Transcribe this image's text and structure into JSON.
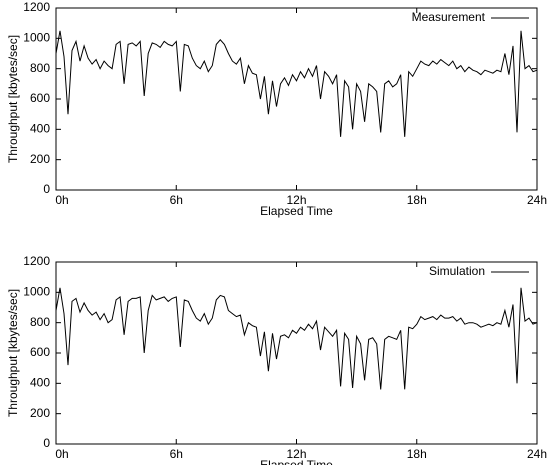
{
  "chart_data": [
    {
      "type": "line",
      "xlabel": "Elapsed Time",
      "ylabel": "Throughput [kbytes/sec]",
      "xlim": [
        0,
        24
      ],
      "xticks": [
        {
          "value": 0,
          "label": "0h"
        },
        {
          "value": 6,
          "label": "6h"
        },
        {
          "value": 12,
          "label": "12h"
        },
        {
          "value": 18,
          "label": "18h"
        },
        {
          "value": 24,
          "label": "24h"
        }
      ],
      "ylim": [
        0,
        1200
      ],
      "yticks": [
        0,
        200,
        400,
        600,
        800,
        1000,
        1200
      ],
      "legend": "upper right",
      "x": [
        0,
        0.2,
        0.4,
        0.6,
        0.8,
        1,
        1.2,
        1.4,
        1.6,
        1.8,
        2,
        2.2,
        2.4,
        2.6,
        2.8,
        3,
        3.2,
        3.4,
        3.6,
        3.8,
        4,
        4.2,
        4.4,
        4.6,
        4.8,
        5,
        5.2,
        5.4,
        5.6,
        5.8,
        6,
        6.2,
        6.4,
        6.6,
        6.8,
        7,
        7.2,
        7.4,
        7.6,
        7.8,
        8,
        8.2,
        8.4,
        8.6,
        8.8,
        9,
        9.2,
        9.4,
        9.6,
        9.8,
        10,
        10.2,
        10.4,
        10.6,
        10.8,
        11,
        11.2,
        11.4,
        11.6,
        11.8,
        12,
        12.2,
        12.4,
        12.6,
        12.8,
        13,
        13.2,
        13.4,
        13.6,
        13.8,
        14,
        14.2,
        14.4,
        14.6,
        14.8,
        15,
        15.2,
        15.4,
        15.6,
        15.8,
        16,
        16.2,
        16.4,
        16.6,
        16.8,
        17,
        17.2,
        17.4,
        17.6,
        17.8,
        18,
        18.2,
        18.4,
        18.6,
        18.8,
        19,
        19.2,
        19.4,
        19.6,
        19.8,
        20,
        20.2,
        20.4,
        20.6,
        20.8,
        21,
        21.2,
        21.4,
        21.6,
        21.8,
        22,
        22.2,
        22.4,
        22.6,
        22.8,
        23,
        23.2,
        23.4,
        23.6,
        23.8,
        24
      ],
      "series": [
        {
          "name": "Measurement",
          "color": "#000000",
          "values": [
            900,
            1050,
            880,
            500,
            920,
            980,
            850,
            950,
            870,
            830,
            860,
            800,
            850,
            820,
            800,
            960,
            980,
            700,
            960,
            970,
            950,
            980,
            620,
            900,
            970,
            960,
            940,
            980,
            960,
            950,
            980,
            650,
            960,
            950,
            870,
            820,
            800,
            850,
            780,
            820,
            960,
            990,
            960,
            900,
            850,
            830,
            870,
            700,
            820,
            770,
            760,
            600,
            750,
            500,
            720,
            550,
            700,
            740,
            690,
            760,
            720,
            780,
            740,
            800,
            750,
            820,
            600,
            780,
            750,
            700,
            760,
            350,
            720,
            680,
            400,
            700,
            650,
            450,
            700,
            680,
            650,
            380,
            700,
            720,
            680,
            700,
            760,
            350,
            780,
            750,
            800,
            850,
            830,
            820,
            850,
            830,
            860,
            840,
            820,
            850,
            800,
            820,
            780,
            810,
            790,
            780,
            760,
            790,
            780,
            770,
            790,
            780,
            900,
            760,
            950,
            380,
            1050,
            800,
            820,
            780,
            790
          ]
        }
      ]
    },
    {
      "type": "line",
      "xlabel": "Elapsed Time",
      "ylabel": "Throughput [kbytes/sec]",
      "xlim": [
        0,
        24
      ],
      "xticks": [
        {
          "value": 0,
          "label": "0h"
        },
        {
          "value": 6,
          "label": "6h"
        },
        {
          "value": 12,
          "label": "12h"
        },
        {
          "value": 18,
          "label": "18h"
        },
        {
          "value": 24,
          "label": "24h"
        }
      ],
      "ylim": [
        0,
        1200
      ],
      "yticks": [
        0,
        200,
        400,
        600,
        800,
        1000,
        1200
      ],
      "legend": "upper right",
      "x": [
        0,
        0.2,
        0.4,
        0.6,
        0.8,
        1,
        1.2,
        1.4,
        1.6,
        1.8,
        2,
        2.2,
        2.4,
        2.6,
        2.8,
        3,
        3.2,
        3.4,
        3.6,
        3.8,
        4,
        4.2,
        4.4,
        4.6,
        4.8,
        5,
        5.2,
        5.4,
        5.6,
        5.8,
        6,
        6.2,
        6.4,
        6.6,
        6.8,
        7,
        7.2,
        7.4,
        7.6,
        7.8,
        8,
        8.2,
        8.4,
        8.6,
        8.8,
        9,
        9.2,
        9.4,
        9.6,
        9.8,
        10,
        10.2,
        10.4,
        10.6,
        10.8,
        11,
        11.2,
        11.4,
        11.6,
        11.8,
        12,
        12.2,
        12.4,
        12.6,
        12.8,
        13,
        13.2,
        13.4,
        13.6,
        13.8,
        14,
        14.2,
        14.4,
        14.6,
        14.8,
        15,
        15.2,
        15.4,
        15.6,
        15.8,
        16,
        16.2,
        16.4,
        16.6,
        16.8,
        17,
        17.2,
        17.4,
        17.6,
        17.8,
        18,
        18.2,
        18.4,
        18.6,
        18.8,
        19,
        19.2,
        19.4,
        19.6,
        19.8,
        20,
        20.2,
        20.4,
        20.6,
        20.8,
        21,
        21.2,
        21.4,
        21.6,
        21.8,
        22,
        22.2,
        22.4,
        22.6,
        22.8,
        23,
        23.2,
        23.4,
        23.6,
        23.8,
        24
      ],
      "series": [
        {
          "name": "Simulation",
          "color": "#000000",
          "values": [
            880,
            1030,
            860,
            520,
            940,
            960,
            870,
            930,
            880,
            850,
            870,
            820,
            860,
            800,
            820,
            950,
            970,
            720,
            940,
            960,
            960,
            970,
            600,
            880,
            980,
            950,
            960,
            970,
            940,
            960,
            970,
            640,
            950,
            940,
            880,
            830,
            810,
            860,
            790,
            830,
            950,
            980,
            970,
            880,
            860,
            840,
            850,
            720,
            800,
            780,
            770,
            580,
            740,
            480,
            730,
            560,
            710,
            720,
            700,
            750,
            730,
            770,
            750,
            790,
            760,
            810,
            620,
            770,
            740,
            710,
            750,
            380,
            730,
            690,
            370,
            710,
            660,
            420,
            690,
            700,
            660,
            360,
            690,
            710,
            700,
            690,
            750,
            360,
            770,
            760,
            790,
            840,
            820,
            830,
            840,
            820,
            850,
            830,
            830,
            840,
            810,
            830,
            790,
            800,
            800,
            790,
            770,
            780,
            790,
            780,
            800,
            790,
            880,
            770,
            920,
            400,
            1030,
            810,
            830,
            790,
            800
          ]
        }
      ]
    }
  ]
}
